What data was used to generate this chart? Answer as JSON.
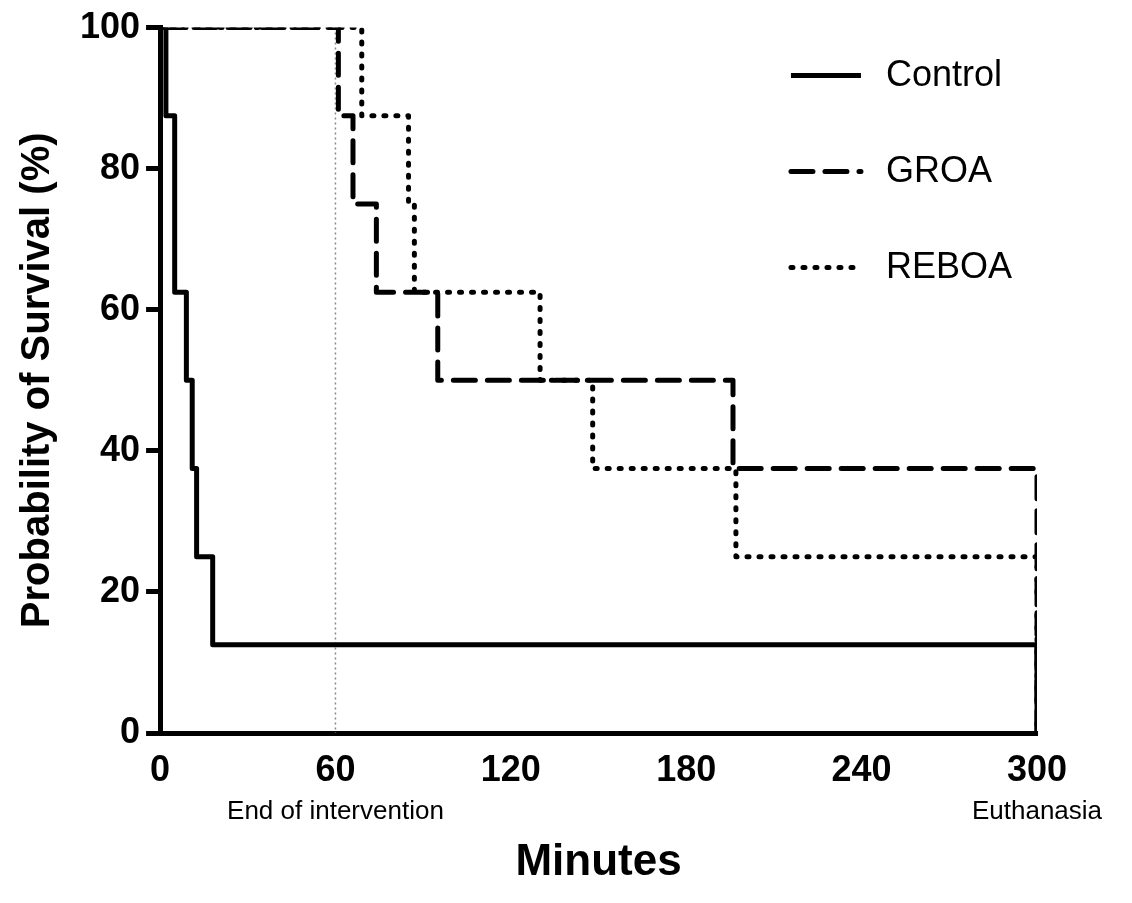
{
  "chart_data": {
    "type": "step",
    "xlabel": "Minutes",
    "ylabel": "Probability of Survival (%)",
    "xlim": [
      0,
      300
    ],
    "xticks": [
      0,
      60,
      120,
      180,
      240,
      300
    ],
    "ylim": [
      0,
      100
    ],
    "yticks": [
      0,
      20,
      40,
      60,
      80,
      100
    ],
    "grid": false,
    "legend": "top right",
    "marker": "none",
    "series": [
      {
        "name": "Control",
        "color": "#000000",
        "line_style": "solid",
        "x": [
          0,
          2,
          5,
          9,
          11,
          12.5,
          18,
          300
        ],
        "values": [
          100,
          87.5,
          62.5,
          50,
          37.5,
          25,
          12.5,
          0
        ]
      },
      {
        "name": "GROA",
        "color": "#000000",
        "line_style": "dashed",
        "x": [
          0,
          61,
          66,
          74,
          95,
          196,
          300
        ],
        "values": [
          100,
          87.5,
          75,
          62.5,
          50,
          37.5,
          0
        ]
      },
      {
        "name": "REBOA",
        "color": "#000000",
        "line_style": "dotted",
        "x": [
          0,
          69,
          85,
          87,
          130,
          148,
          197,
          300
        ],
        "values": [
          100,
          87.5,
          75,
          62.5,
          50,
          37.5,
          25,
          0
        ]
      }
    ],
    "ref_lines": [
      {
        "axis": "x",
        "value": 60,
        "label": "End of intervention",
        "color": "#888888",
        "line_style": "dotted"
      }
    ],
    "annotations": [
      "Euthanasia"
    ]
  }
}
